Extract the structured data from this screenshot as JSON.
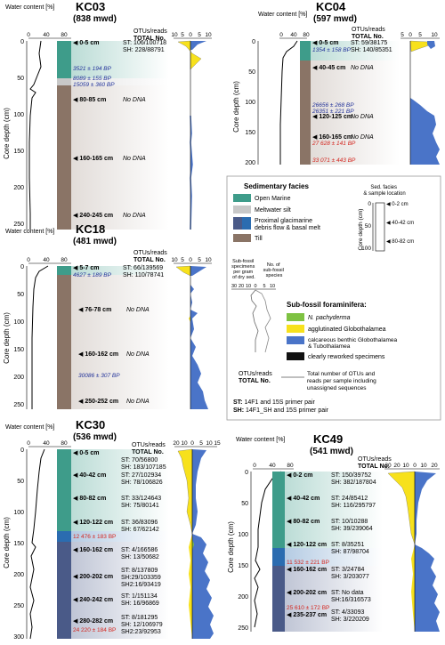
{
  "core_depth_label": "Core depth  (cm)",
  "water_label": "Water content [%]",
  "otus_header": "OTUs/reads",
  "total_header": "TOTAL No.",
  "no_dna": "No DNA",
  "cores": [
    {
      "id": "KC03",
      "mwd": "(838 mwd)",
      "y_ticks": [
        "0",
        "50",
        "100",
        "150",
        "200",
        "250"
      ],
      "water_ticks": [
        "0",
        "40",
        "80"
      ],
      "pct_ticks": [
        "10",
        "5",
        "0",
        "5",
        "10"
      ],
      "samples": [
        {
          "depth": "0-5 cm",
          "st": "ST: 106/100718",
          "sh": "SH: 228/88791"
        },
        {
          "depth": "80-85 cm",
          "note": "No DNA"
        },
        {
          "depth": "160-165 cm",
          "note": "No DNA"
        },
        {
          "depth": "240-245 cm",
          "note": "No DNA"
        }
      ],
      "ages": [
        "3521 ± 194 BP",
        "8089 ± 155 BP",
        "15059 ± 360 BP"
      ]
    },
    {
      "id": "KC04",
      "mwd": "(597 mwd)",
      "y_ticks": [
        "0",
        "50",
        "100",
        "150",
        "200"
      ],
      "water_ticks": [
        "0",
        "40",
        "80"
      ],
      "pct_ticks": [
        "5",
        "0",
        "5",
        "10"
      ],
      "samples": [
        {
          "depth": "0-5 cm",
          "st": "ST: 59/38175",
          "sh": "SH: 140/85351"
        },
        {
          "depth": "40-45 cm",
          "note": "No DNA"
        },
        {
          "depth": "120-125 cm",
          "note": "No DNA"
        },
        {
          "depth": "160-165 cm",
          "note": "No DNA"
        }
      ],
      "ages": [
        "1354 ± 158 BP",
        "26656 ± 268 BP",
        "26351 ± 221 BP",
        "27 628 ± 141 BP",
        "33 071 ± 443 BP"
      ]
    },
    {
      "id": "KC18",
      "mwd": "(481 mwd)",
      "y_ticks": [
        "0",
        "50",
        "100",
        "150",
        "200",
        "250"
      ],
      "water_ticks": [
        "0",
        "40",
        "80"
      ],
      "pct_ticks": [
        "10",
        "5",
        "0",
        "5",
        "10"
      ],
      "samples": [
        {
          "depth": "5-7 cm",
          "st": "ST: 66/139569",
          "sh": "SH: 110/78741"
        },
        {
          "depth": "76-78 cm",
          "note": "No DNA"
        },
        {
          "depth": "160-162 cm",
          "note": "No DNA"
        },
        {
          "depth": "250-252 cm",
          "note": "No DNA"
        }
      ],
      "ages": [
        "4627 ± 189 BP",
        "30086 ± 307 BP"
      ]
    },
    {
      "id": "KC30",
      "mwd": "(536 mwd)",
      "y_ticks": [
        "0",
        "50",
        "100",
        "150",
        "200",
        "250",
        "300"
      ],
      "water_ticks": [
        "0",
        "40",
        "80"
      ],
      "pct_ticks": [
        "20",
        "10",
        "0",
        "5",
        "10",
        "15"
      ],
      "samples": [
        {
          "depth": "0-5 cm",
          "st": "ST: 70/56800",
          "sh": "SH: 183/107185"
        },
        {
          "depth": "40-42 cm",
          "st": "ST: 27/102934",
          "sh": "SH: 78/106826"
        },
        {
          "depth": "80-82 cm",
          "st": "ST: 33/124643",
          "sh": "SH: 75/80141"
        },
        {
          "depth": "120-122 cm",
          "st": "ST: 36/83096",
          "sh": "SH: 67/62142"
        },
        {
          "depth": "160-162 cm",
          "st": "ST: 4/166586",
          "sh": "SH: 13/50682"
        },
        {
          "depth": "200-202 cm",
          "st": "ST: 8/137809",
          "sh": "SH:29/103359",
          "sh2": "SH2:16/93419"
        },
        {
          "depth": "240-242 cm",
          "st": "ST: 1/151134",
          "sh": "SH: 16/96869"
        },
        {
          "depth": "280-282 cm",
          "st": "ST: 8/181295",
          "sh": "SH: 12/106979",
          "sh2": "SH2:23/92953"
        }
      ],
      "ages": [
        "12 476 ± 183 BP",
        "24 220 ± 184 BP"
      ]
    },
    {
      "id": "KC49",
      "mwd": "(541 mwd)",
      "y_ticks": [
        "0",
        "50",
        "100",
        "150",
        "200",
        "250"
      ],
      "water_ticks": [
        "0",
        "40",
        "80"
      ],
      "pct_ticks": [
        "30",
        "20",
        "10",
        "0",
        "10",
        "20"
      ],
      "samples": [
        {
          "depth": "0-2 cm",
          "st": "ST: 150/39752",
          "sh": "SH: 382/187804"
        },
        {
          "depth": "40-42 cm",
          "st": "ST: 24/85412",
          "sh": "SH: 116/295797"
        },
        {
          "depth": "80-82 cm",
          "st": "ST: 10/10288",
          "sh": "SH: 39/239064"
        },
        {
          "depth": "120-122 cm",
          "st": "ST: 8/35251",
          "sh": "SH: 87/98704"
        },
        {
          "depth": "160-162 cm",
          "st": "ST: 3/24784",
          "sh": "SH: 3/203077"
        },
        {
          "depth": "200-202 cm",
          "st": "ST: No data",
          "sh": "SH:16/316573"
        },
        {
          "depth": "235-237 cm",
          "st": "ST: 4/33093",
          "sh": "SH: 3/220209"
        }
      ],
      "ages": [
        "11 532 ± 221 BP",
        "25 610 ± 172 BP"
      ]
    }
  ],
  "legend": {
    "facies_title": "Sedimentary facies",
    "facies": [
      "Open Marine",
      "Meltwater silt",
      "Proximal glacimarine debris flow & basal melt",
      "Till"
    ],
    "facies_colors": {
      "open_marine": "#3e9c8a",
      "meltwater": "#c8c8c8",
      "proximal_a": "#2b6cb0",
      "proximal_b": "#4a5a88",
      "till": "#8a7466"
    },
    "sed_loc_title": "Sed. facies & sample location",
    "sed_loc_ticks": [
      "0",
      "50",
      "100"
    ],
    "sed_loc_labels": [
      "0-2 cm",
      "40-42 cm",
      "80-82 cm"
    ],
    "core_depth_short": "Core depth (cm)",
    "subfossil_specimens": "Sub-fossil specimens per gram of dry sed.",
    "subfossil_species": "No. of sub-fossil species",
    "subfossil_ticks": [
      "30",
      "20",
      "10",
      "0",
      "5",
      "10"
    ],
    "foram_title": "Sub-fossil foraminifera:",
    "forams": [
      {
        "label": "N. pachyderma",
        "color": "#7ec242"
      },
      {
        "label": "agglutinated Globothalamea",
        "color": "#f7e11c"
      },
      {
        "label": "calcareous benthic Globothalamea & Tubothalamea",
        "color": "#4a74c8"
      },
      {
        "label": "clearly reworked specimens",
        "color": "#111111"
      }
    ],
    "otu_note": "Total number of OTUs and reads per sample including unassigned sequences",
    "st_key": "ST:",
    "st_desc": "14F1 and 15S primer pair",
    "sh_key": "SH:",
    "sh_desc": "14F1_SH and 15S primer pair"
  }
}
